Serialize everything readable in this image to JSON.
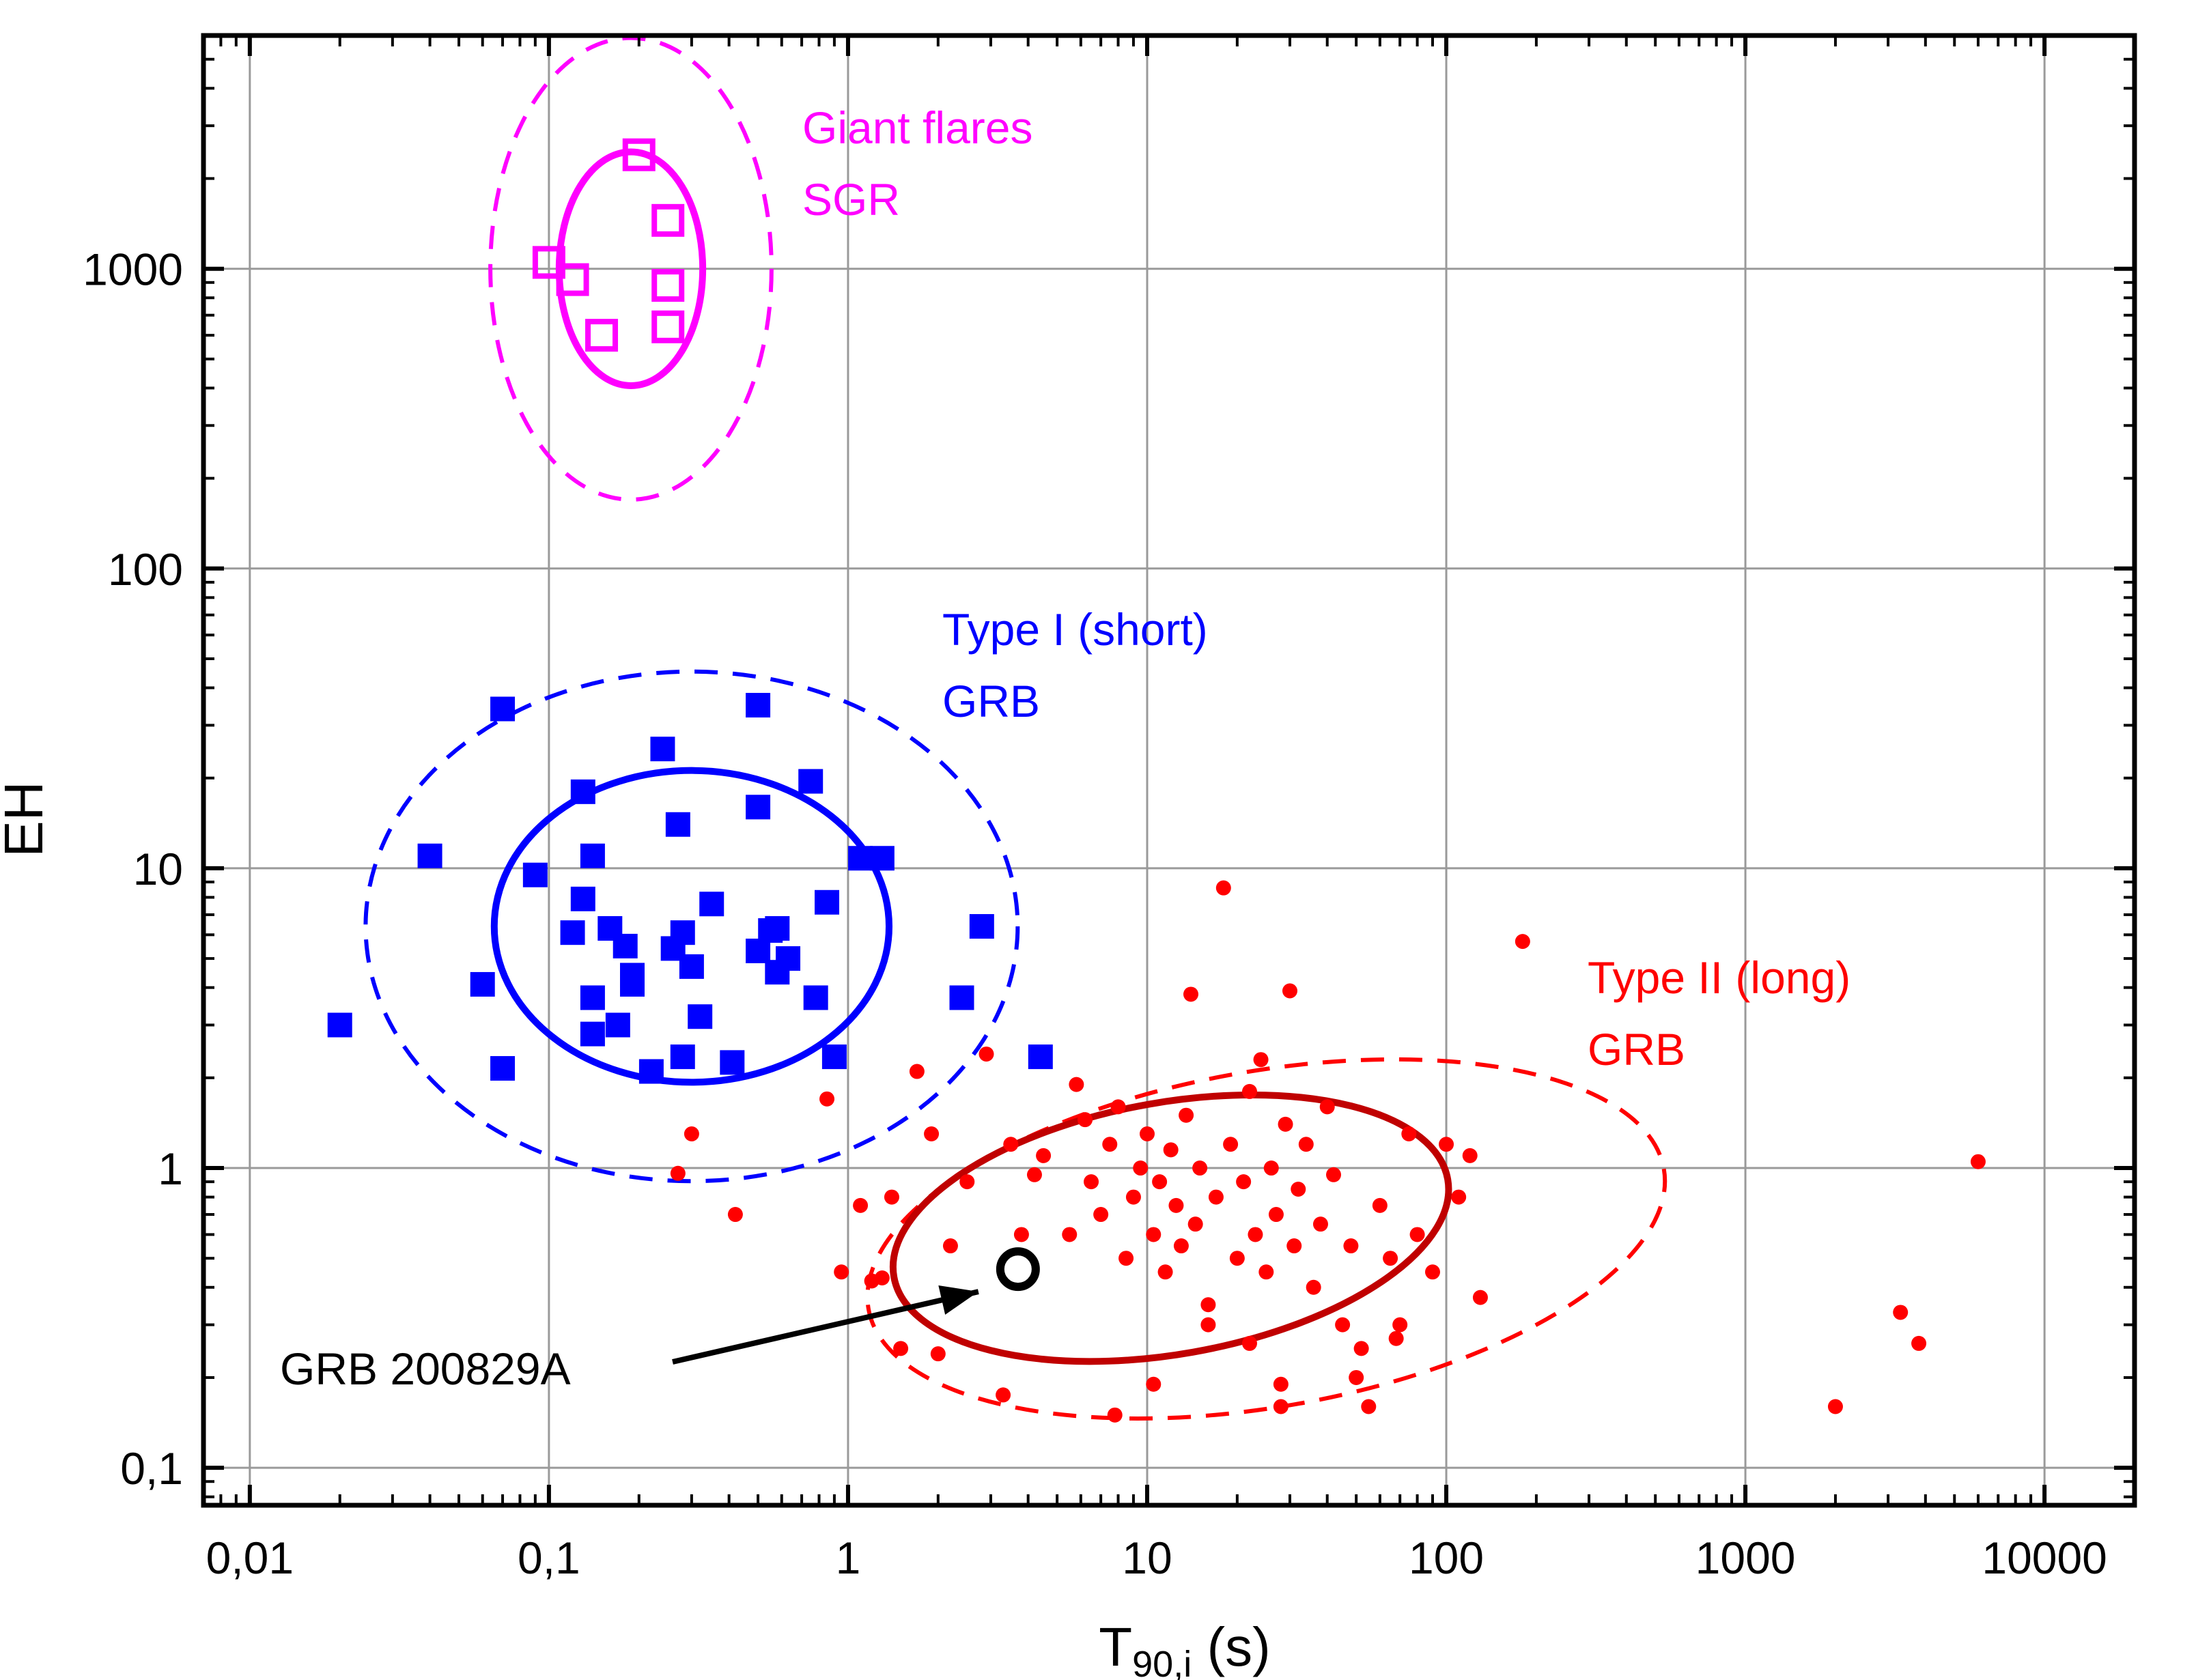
{
  "chart_data": {
    "type": "scatter",
    "title": "",
    "xlabel": {
      "main": "T",
      "sub": "90,i",
      "suffix": " (s)"
    },
    "ylabel": "EH",
    "xscale": "log",
    "yscale": "log",
    "xlim": [
      0.007,
      20000
    ],
    "ylim": [
      0.075,
      6000
    ],
    "grid": true,
    "x_ticks": [
      {
        "value": 0.01,
        "label": "0,01"
      },
      {
        "value": 0.1,
        "label": "0,1"
      },
      {
        "value": 1,
        "label": "1"
      },
      {
        "value": 10,
        "label": "10"
      },
      {
        "value": 100,
        "label": "100"
      },
      {
        "value": 1000,
        "label": "1000"
      },
      {
        "value": 10000,
        "label": "10000"
      }
    ],
    "y_ticks": [
      {
        "value": 0.1,
        "label": "0,1"
      },
      {
        "value": 1,
        "label": "1"
      },
      {
        "value": 10,
        "label": "10"
      },
      {
        "value": 100,
        "label": "100"
      },
      {
        "value": 1000,
        "label": "1000"
      }
    ],
    "series": [
      {
        "label_lines": [
          "Giant flares",
          "SGR"
        ],
        "color": "#ff00ff",
        "marker": "open-square",
        "points": [
          [
            0.1,
            1050
          ],
          [
            0.12,
            920
          ],
          [
            0.2,
            2400
          ],
          [
            0.25,
            1450
          ],
          [
            0.25,
            880
          ],
          [
            0.25,
            640
          ],
          [
            0.15,
            600
          ]
        ],
        "ellipse_1sigma": {
          "cx": 0.188,
          "cy": 1000,
          "log_rx": 0.24,
          "log_ry": 0.39,
          "angle": 0
        },
        "ellipse_2sigma": {
          "cx": 0.188,
          "cy": 1000,
          "log_rx": 0.47,
          "log_ry": 0.77,
          "angle": 0
        }
      },
      {
        "label_lines": [
          "Type I (short)",
          "GRB"
        ],
        "color": "#0000ff",
        "marker": "filled-square",
        "points": [
          [
            0.02,
            3.0
          ],
          [
            0.04,
            11.0
          ],
          [
            0.06,
            4.1
          ],
          [
            0.07,
            34.0
          ],
          [
            0.07,
            2.15
          ],
          [
            0.09,
            9.5
          ],
          [
            0.12,
            6.1
          ],
          [
            0.13,
            18.0
          ],
          [
            0.13,
            7.9
          ],
          [
            0.14,
            11.0
          ],
          [
            0.14,
            3.7
          ],
          [
            0.14,
            2.8
          ],
          [
            0.16,
            6.3
          ],
          [
            0.17,
            3.0
          ],
          [
            0.18,
            5.5
          ],
          [
            0.19,
            4.4
          ],
          [
            0.19,
            4.1
          ],
          [
            0.22,
            2.1
          ],
          [
            0.24,
            25.0
          ],
          [
            0.26,
            5.4
          ],
          [
            0.27,
            14.0
          ],
          [
            0.28,
            6.1
          ],
          [
            0.28,
            2.35
          ],
          [
            0.3,
            4.7
          ],
          [
            0.32,
            3.2
          ],
          [
            0.35,
            7.6
          ],
          [
            0.41,
            2.25
          ],
          [
            0.5,
            35.0
          ],
          [
            0.5,
            16.0
          ],
          [
            0.5,
            5.3
          ],
          [
            0.55,
            6.2
          ],
          [
            0.58,
            6.3
          ],
          [
            0.58,
            4.5
          ],
          [
            0.63,
            5.0
          ],
          [
            0.75,
            19.5
          ],
          [
            0.78,
            3.7
          ],
          [
            0.85,
            7.7
          ],
          [
            0.9,
            2.35
          ],
          [
            1.1,
            10.8
          ],
          [
            1.3,
            10.8
          ],
          [
            2.4,
            3.7
          ],
          [
            2.8,
            6.4
          ],
          [
            4.4,
            2.35
          ]
        ],
        "ellipse_1sigma": {
          "cx": 0.3,
          "cy": 6.4,
          "log_rx": 0.66,
          "log_ry": 0.52,
          "angle": 0
        },
        "ellipse_2sigma": {
          "cx": 0.3,
          "cy": 6.4,
          "log_rx": 1.09,
          "log_ry": 0.85,
          "angle": 0
        }
      },
      {
        "label_lines": [
          "Type II (long)",
          "GRB"
        ],
        "color": "#ff0000",
        "marker": "filled-circle",
        "points": [
          [
            0.27,
            0.96
          ],
          [
            0.3,
            1.3
          ],
          [
            0.42,
            0.7
          ],
          [
            0.85,
            1.7
          ],
          [
            1.1,
            0.75
          ],
          [
            1.4,
            0.8
          ],
          [
            1.7,
            2.1
          ],
          [
            1.9,
            1.3
          ],
          [
            2.2,
            0.55
          ],
          [
            2.5,
            0.9
          ],
          [
            2.9,
            2.4
          ],
          [
            3.5,
            1.2
          ],
          [
            3.8,
            0.6
          ],
          [
            4.2,
            0.95
          ],
          [
            4.5,
            1.1
          ],
          [
            5.5,
            0.6
          ],
          [
            5.8,
            1.9
          ],
          [
            6.2,
            1.45
          ],
          [
            6.5,
            0.9
          ],
          [
            7.0,
            0.7
          ],
          [
            7.5,
            1.2
          ],
          [
            8.0,
            1.6
          ],
          [
            8.5,
            0.5
          ],
          [
            9.0,
            0.8
          ],
          [
            9.5,
            1.0
          ],
          [
            10.0,
            1.3
          ],
          [
            10.5,
            0.6
          ],
          [
            11.0,
            0.9
          ],
          [
            11.5,
            0.45
          ],
          [
            12.0,
            1.15
          ],
          [
            12.5,
            0.75
          ],
          [
            13.0,
            0.55
          ],
          [
            13.5,
            1.5
          ],
          [
            14.0,
            3.8
          ],
          [
            14.5,
            0.65
          ],
          [
            15.0,
            1.0
          ],
          [
            16.0,
            0.35
          ],
          [
            17.0,
            0.8
          ],
          [
            18.0,
            8.6
          ],
          [
            19.0,
            1.2
          ],
          [
            20.0,
            0.5
          ],
          [
            21.0,
            0.9
          ],
          [
            22.0,
            1.8
          ],
          [
            23.0,
            0.6
          ],
          [
            24.0,
            2.3
          ],
          [
            25.0,
            0.45
          ],
          [
            26.0,
            1.0
          ],
          [
            27.0,
            0.7
          ],
          [
            28.0,
            0.19
          ],
          [
            29.0,
            1.4
          ],
          [
            30.0,
            3.9
          ],
          [
            31.0,
            0.55
          ],
          [
            32.0,
            0.85
          ],
          [
            34.0,
            1.2
          ],
          [
            36.0,
            0.4
          ],
          [
            38.0,
            0.65
          ],
          [
            40.0,
            1.6
          ],
          [
            42.0,
            0.95
          ],
          [
            45.0,
            0.3
          ],
          [
            48.0,
            0.55
          ],
          [
            50.0,
            0.2
          ],
          [
            55.0,
            0.16
          ],
          [
            60.0,
            0.75
          ],
          [
            65.0,
            0.5
          ],
          [
            70.0,
            0.3
          ],
          [
            75.0,
            1.3
          ],
          [
            80.0,
            0.6
          ],
          [
            90.0,
            0.45
          ],
          [
            100.0,
            1.2
          ],
          [
            110.0,
            0.8
          ],
          [
            120.0,
            1.1
          ],
          [
            130.0,
            0.37
          ],
          [
            180.0,
            5.7
          ],
          [
            2000.0,
            0.16
          ],
          [
            3300.0,
            0.33
          ],
          [
            3800.0,
            0.26
          ],
          [
            6000.0,
            1.05
          ],
          [
            1.2,
            0.42
          ],
          [
            1.5,
            0.25
          ],
          [
            2.0,
            0.24
          ],
          [
            3.3,
            0.175
          ],
          [
            7.8,
            0.15
          ],
          [
            10.5,
            0.19
          ],
          [
            0.95,
            0.45
          ],
          [
            1.3,
            0.43
          ],
          [
            16.0,
            0.3
          ],
          [
            22.0,
            0.26
          ],
          [
            28.0,
            0.16
          ],
          [
            52.0,
            0.25
          ],
          [
            68.0,
            0.27
          ]
        ],
        "highlight": {
          "label": "GRB 200829A",
          "x": 3.7,
          "y": 0.46
        },
        "ellipse_1sigma": {
          "cx": 12.0,
          "cy": 0.63,
          "log_rx": 0.94,
          "log_ry": 0.42,
          "angle": -10
        },
        "ellipse_2sigma": {
          "cx": 25.0,
          "cy": 0.58,
          "log_rx": 1.35,
          "log_ry": 0.56,
          "angle": -10
        }
      }
    ]
  },
  "style": {
    "magenta": "#ff00ff",
    "blue": "#0000ff",
    "red": "#ff0000",
    "dark_red": "#c00000",
    "grid": "#9a9a9a"
  }
}
